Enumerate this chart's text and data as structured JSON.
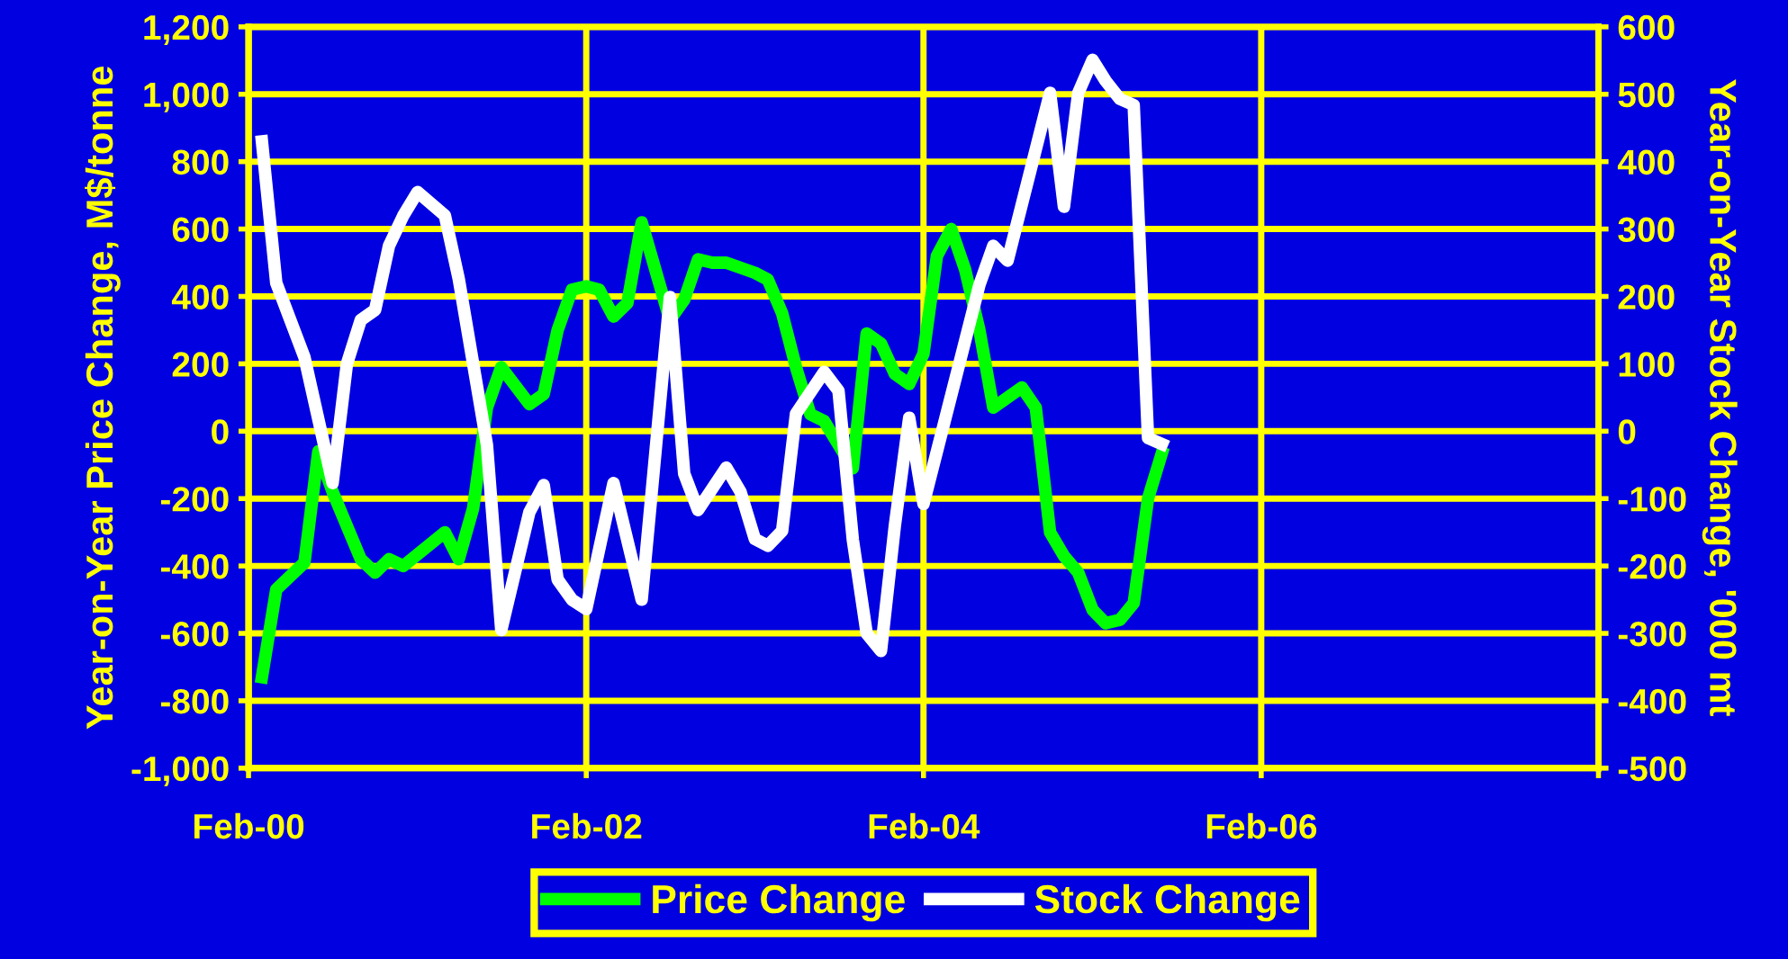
{
  "chart_data": {
    "type": "line",
    "xlabel": null,
    "ylabel": "Year-on-Year Price Change, M$/tonne",
    "y2label": "Year-on-Year Stock Change, '000 mt",
    "x": [
      "2000-03",
      "2000-04",
      "2000-06",
      "2000-07",
      "2000-08",
      "2000-10",
      "2000-11",
      "2000-12",
      "2001-01",
      "2001-04",
      "2001-05",
      "2001-06",
      "2001-07",
      "2001-08",
      "2001-10",
      "2001-11",
      "2001-12",
      "2002-01",
      "2002-02",
      "2002-03",
      "2002-04",
      "2002-05",
      "2002-06",
      "2002-08",
      "2002-09",
      "2002-10",
      "2002-11",
      "2002-12",
      "2003-02",
      "2003-03",
      "2003-04",
      "2003-05",
      "2003-06",
      "2003-07",
      "2003-09",
      "2003-10",
      "2003-11",
      "2003-12",
      "2004-01",
      "2004-02",
      "2004-03",
      "2004-04",
      "2004-05",
      "2004-06",
      "2004-07",
      "2004-08",
      "2004-09",
      "2004-10",
      "2004-11",
      "2004-12",
      "2005-01",
      "2005-02",
      "2005-03",
      "2005-04",
      "2005-05",
      "2005-06",
      "2005-07"
    ],
    "series": [
      {
        "name": "Price Change",
        "color": "#00ff00",
        "values": [
          -730,
          -470,
          -390,
          -60,
          -180,
          -380,
          -420,
          -380,
          -400,
          -300,
          -380,
          -230,
          70,
          190,
          80,
          110,
          300,
          420,
          430,
          420,
          340,
          380,
          620,
          330,
          390,
          510,
          500,
          500,
          470,
          450,
          350,
          190,
          50,
          30,
          -110,
          290,
          260,
          170,
          140,
          230,
          520,
          600,
          480,
          300,
          70,
          100,
          130,
          70,
          -300,
          -370,
          -420,
          -530,
          -570,
          -560,
          -510,
          -200,
          -65
        ]
      },
      {
        "name": "Stock Change",
        "color": "#ffffff",
        "axis": "y2",
        "x": [
          "2000-03",
          "2000-04",
          "2000-06",
          "2000-08",
          "2000-09",
          "2000-10",
          "2000-11",
          "2000-12",
          "2001-01",
          "2001-02",
          "2001-04",
          "2001-05",
          "2001-07",
          "2001-08",
          "2001-10",
          "2001-11",
          "2001-12",
          "2002-01",
          "2002-02",
          "2002-04",
          "2002-06",
          "2002-08",
          "2002-09",
          "2002-10",
          "2002-12",
          "2003-01",
          "2003-02",
          "2003-03",
          "2003-04",
          "2003-05",
          "2003-07",
          "2003-08",
          "2003-09",
          "2003-10",
          "2003-11",
          "2003-12",
          "2004-01",
          "2004-02",
          "2004-06",
          "2004-07",
          "2004-08",
          "2004-11",
          "2004-12",
          "2005-01",
          "2005-02",
          "2005-03",
          "2005-04",
          "2005-05",
          "2005-06",
          "2005-07"
        ],
        "values": [
          430,
          220,
          110,
          -77,
          100,
          165,
          180,
          275,
          320,
          355,
          320,
          226,
          -20,
          -295,
          -120,
          -80,
          -220,
          -250,
          -264,
          -77,
          -250,
          199,
          -63,
          -117,
          -54,
          -90,
          -160,
          -170,
          -148,
          26,
          88,
          60,
          -161,
          -300,
          -326,
          -140,
          20,
          -108,
          217,
          275,
          253,
          502,
          333,
          502,
          551,
          520,
          493,
          484,
          -10,
          -19
        ]
      }
    ],
    "xlim": [
      "2000-02",
      "2008-02"
    ],
    "xticks": [
      {
        "value": "2000-02",
        "label": "Feb-00"
      },
      {
        "value": "2002-02",
        "label": "Feb-02"
      },
      {
        "value": "2004-02",
        "label": "Feb-04"
      },
      {
        "value": "2006-02",
        "label": "Feb-06"
      },
      {
        "value": "2008-02",
        "label": null
      }
    ],
    "ylim": [
      -1000,
      1200
    ],
    "yticks": [
      {
        "value": -1000,
        "label": "-1,000"
      },
      -800,
      -600,
      -400,
      -200,
      0,
      200,
      400,
      600,
      800,
      {
        "value": 1000,
        "label": "1,000"
      },
      {
        "value": 1200,
        "label": "1,200"
      }
    ],
    "y2lim": [
      -500,
      600
    ],
    "y2ticks": [
      -500,
      -400,
      -300,
      -200,
      -100,
      0,
      100,
      200,
      300,
      400,
      500,
      600
    ],
    "grid": true,
    "legend": "bottom",
    "marker": "none",
    "line_style": "solid"
  }
}
